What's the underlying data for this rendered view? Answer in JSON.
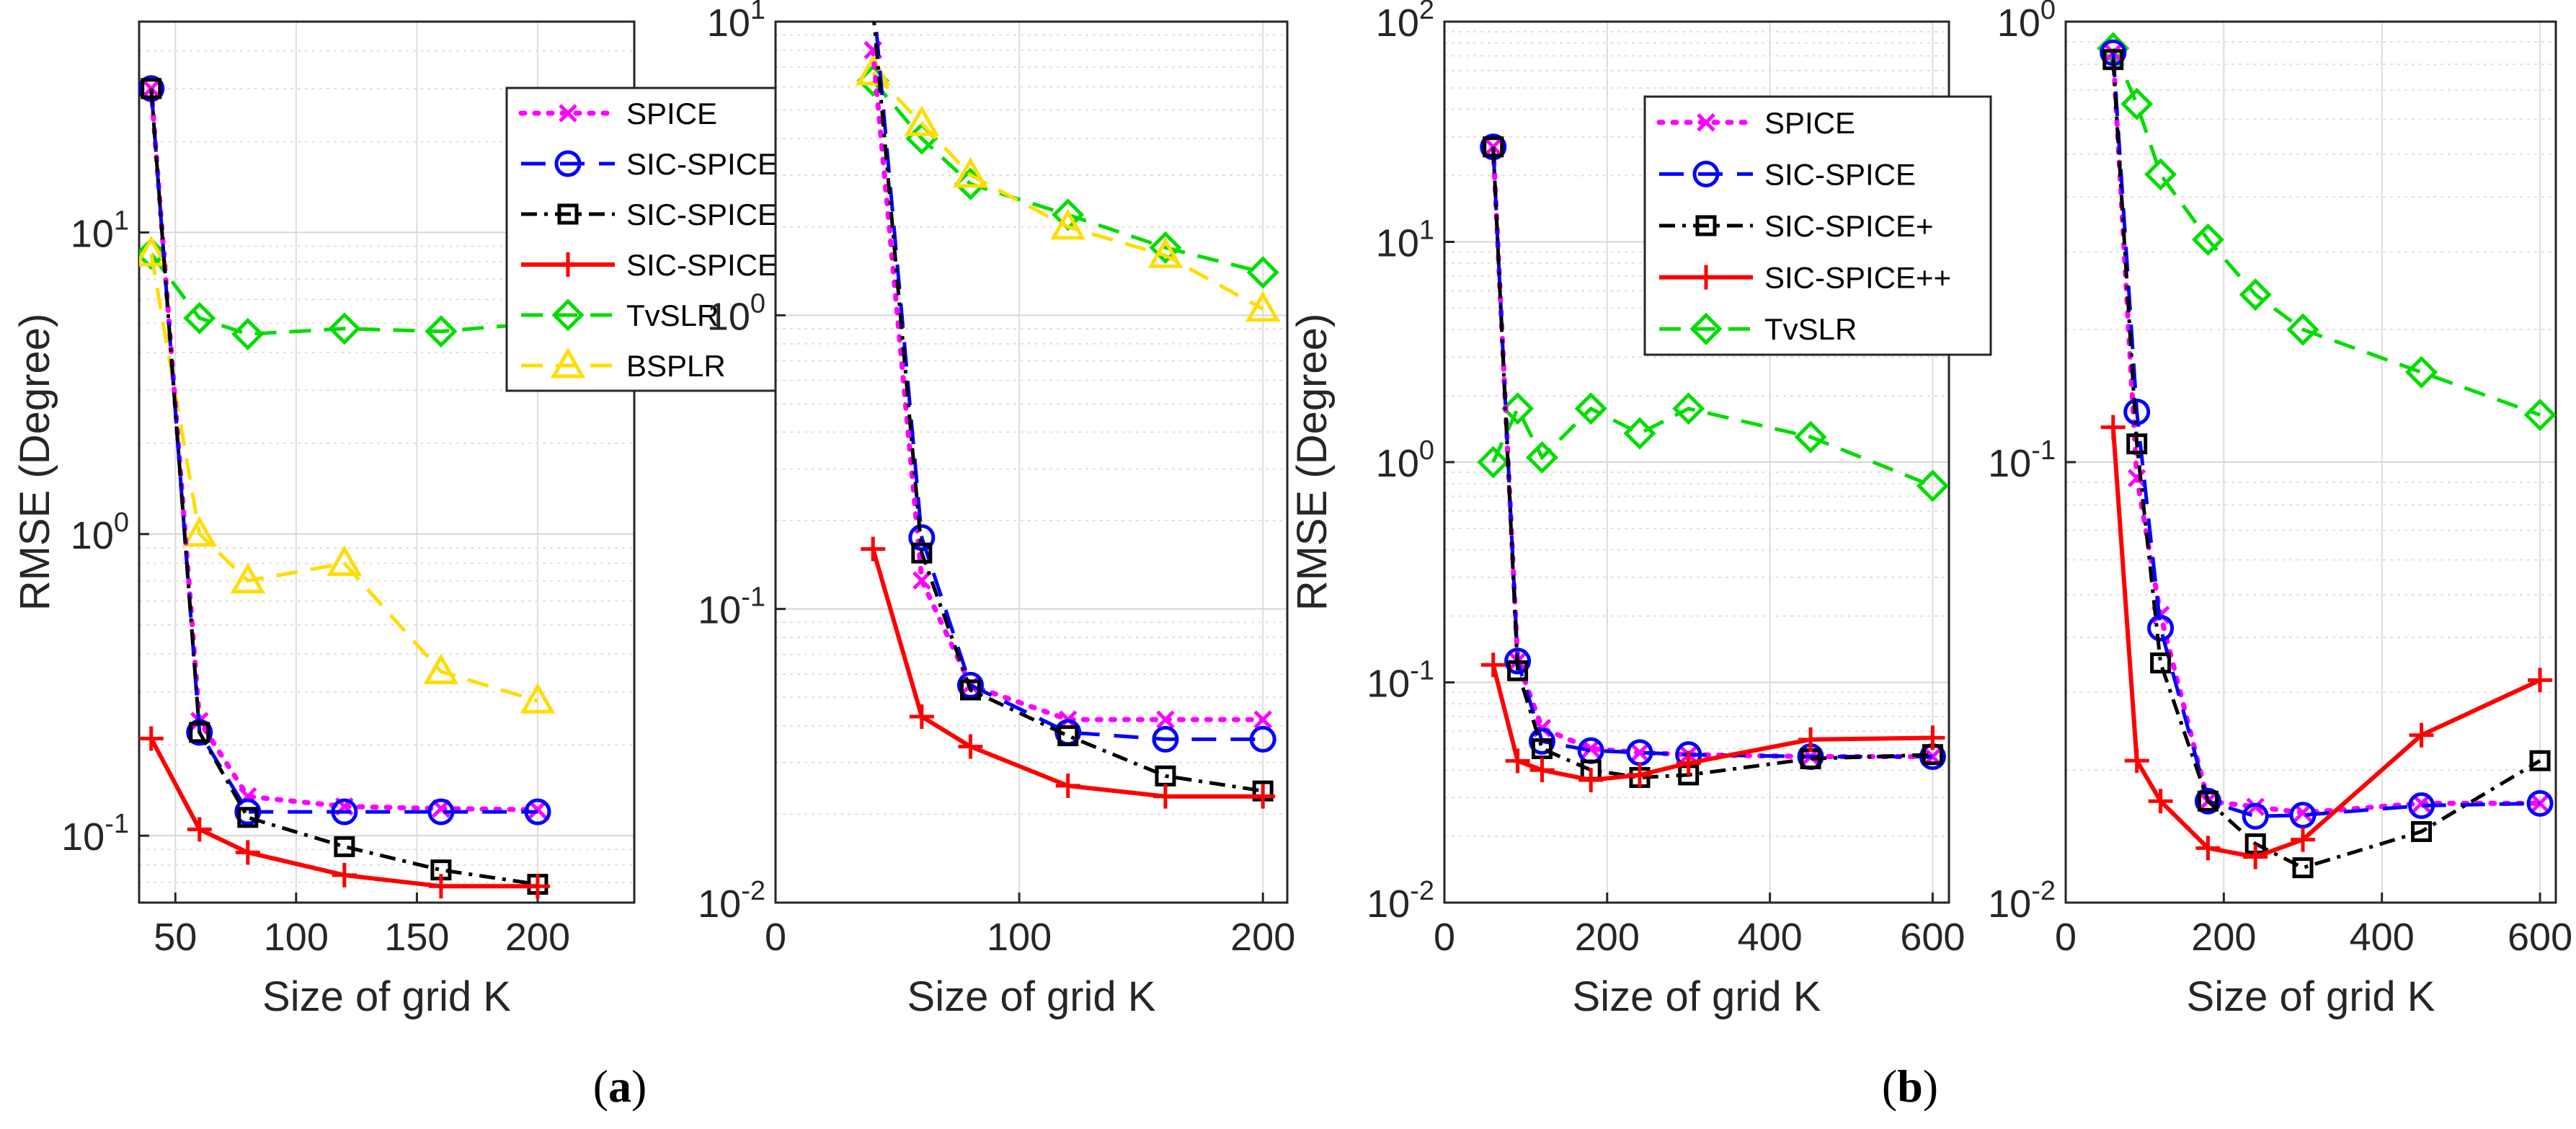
{
  "colors": {
    "SPICE": "#ff00ff",
    "SIC-SPICE": "#0000ff",
    "SIC-SPICE+": "#000000",
    "SIC-SPICE++": "#ff0000",
    "TvSLR": "#00dd00",
    "BSPLR": "#ffdd00"
  },
  "captions": [
    "(a)",
    "(b)"
  ],
  "chart_data": [
    {
      "type": "line",
      "yscale": "log",
      "xlabel": "Size of grid K",
      "ylabel": "RMSE (Degree)",
      "xlim": [
        35,
        240
      ],
      "ylim": [
        0.06,
        50
      ],
      "xticks": [
        "50",
        "100",
        "150",
        "200"
      ],
      "xtick_values": [
        50,
        100,
        150,
        200
      ],
      "yticks": [
        "10^-1",
        "10^0",
        "10^1"
      ],
      "ytick_values": [
        0.1,
        1,
        10
      ],
      "grid": true,
      "legend_position": "top-right",
      "legend": [
        "SPICE",
        "SIC-SPICE",
        "SIC-SPICE+",
        "SIC-SPICE++",
        "TvSLR",
        "BSPLR"
      ],
      "series": [
        {
          "name": "SPICE",
          "x": [
            40,
            60,
            80,
            120,
            160,
            200
          ],
          "y": [
            30,
            0.24,
            0.135,
            0.125,
            0.123,
            0.122
          ]
        },
        {
          "name": "SIC-SPICE",
          "x": [
            40,
            60,
            80,
            120,
            160,
            200
          ],
          "y": [
            30,
            0.22,
            0.12,
            0.12,
            0.12,
            0.12
          ]
        },
        {
          "name": "SIC-SPICE+",
          "x": [
            40,
            60,
            80,
            120,
            160,
            200
          ],
          "y": [
            30,
            0.22,
            0.115,
            0.092,
            0.077,
            0.069
          ]
        },
        {
          "name": "SIC-SPICE++",
          "x": [
            40,
            60,
            80,
            120,
            160,
            200
          ],
          "y": [
            0.21,
            0.105,
            0.088,
            0.074,
            0.068,
            0.068
          ]
        },
        {
          "name": "TvSLR",
          "x": [
            40,
            60,
            80,
            120,
            160,
            200
          ],
          "y": [
            8.5,
            5.2,
            4.6,
            4.8,
            4.7,
            5.0
          ]
        },
        {
          "name": "BSPLR",
          "x": [
            40,
            60,
            80,
            120,
            160,
            200
          ],
          "y": [
            8.5,
            1.0,
            0.7,
            0.8,
            0.35,
            0.28
          ]
        }
      ]
    },
    {
      "type": "line",
      "yscale": "log",
      "xlabel": "Size of grid K",
      "ylabel": "",
      "xlim": [
        0,
        210
      ],
      "ylim": [
        0.01,
        10
      ],
      "xticks": [
        "0",
        "100",
        "200"
      ],
      "xtick_values": [
        0,
        100,
        200
      ],
      "yticks": [
        "10^-2",
        "10^-1",
        "10^0",
        "10^1"
      ],
      "ytick_values": [
        0.01,
        0.1,
        1,
        10
      ],
      "grid": true,
      "series": [
        {
          "name": "SPICE",
          "x": [
            40,
            60,
            80,
            120,
            160,
            200
          ],
          "y": [
            8.0,
            0.125,
            0.055,
            0.042,
            0.042,
            0.042
          ]
        },
        {
          "name": "SIC-SPICE",
          "x": [
            40,
            60,
            80,
            120,
            160,
            200
          ],
          "y": [
            12.5,
            0.175,
            0.055,
            0.038,
            0.036,
            0.036
          ]
        },
        {
          "name": "SIC-SPICE+",
          "x": [
            40,
            60,
            80,
            120,
            160,
            200
          ],
          "y": [
            11.0,
            0.155,
            0.053,
            0.037,
            0.027,
            0.024
          ]
        },
        {
          "name": "SIC-SPICE++",
          "x": [
            40,
            60,
            80,
            120,
            160,
            200
          ],
          "y": [
            0.16,
            0.043,
            0.034,
            0.025,
            0.023,
            0.023
          ]
        },
        {
          "name": "TvSLR",
          "x": [
            40,
            60,
            80,
            120,
            160,
            200
          ],
          "y": [
            6.3,
            4.0,
            2.8,
            2.2,
            1.7,
            1.4
          ]
        },
        {
          "name": "BSPLR",
          "x": [
            40,
            60,
            80,
            120,
            160,
            200
          ],
          "y": [
            6.7,
            4.5,
            3.0,
            2.0,
            1.6,
            1.05
          ]
        }
      ]
    },
    {
      "type": "line",
      "yscale": "log",
      "xlabel": "Size of grid K",
      "ylabel": "RMSE (Degree)",
      "xlim": [
        0,
        620
      ],
      "ylim": [
        0.01,
        100
      ],
      "xticks": [
        "0",
        "200",
        "400",
        "600"
      ],
      "xtick_values": [
        0,
        200,
        400,
        600
      ],
      "yticks": [
        "10^-2",
        "10^-1",
        "10^0",
        "10^1",
        "10^2"
      ],
      "ytick_values": [
        0.01,
        0.1,
        1,
        10,
        100
      ],
      "grid": true,
      "legend_position": "top-right",
      "legend": [
        "SPICE",
        "SIC-SPICE",
        "SIC-SPICE+",
        "SIC-SPICE++",
        "TvSLR"
      ],
      "series": [
        {
          "name": "SPICE",
          "x": [
            60,
            90,
            120,
            180,
            240,
            300,
            450,
            600
          ],
          "y": [
            27,
            0.125,
            0.062,
            0.05,
            0.048,
            0.047,
            0.046,
            0.046
          ]
        },
        {
          "name": "SIC-SPICE",
          "x": [
            60,
            90,
            120,
            180,
            240,
            300,
            450,
            600
          ],
          "y": [
            27,
            0.125,
            0.054,
            0.049,
            0.048,
            0.047,
            0.046,
            0.046
          ]
        },
        {
          "name": "SIC-SPICE+",
          "x": [
            60,
            90,
            120,
            180,
            240,
            300,
            450,
            600
          ],
          "y": [
            27,
            0.113,
            0.05,
            0.04,
            0.037,
            0.038,
            0.045,
            0.047
          ]
        },
        {
          "name": "SIC-SPICE++",
          "x": [
            60,
            90,
            120,
            180,
            240,
            300,
            450,
            600
          ],
          "y": [
            0.12,
            0.044,
            0.04,
            0.036,
            0.038,
            0.043,
            0.055,
            0.056
          ]
        },
        {
          "name": "TvSLR",
          "x": [
            60,
            90,
            120,
            180,
            240,
            300,
            450,
            600
          ],
          "y": [
            1.0,
            1.75,
            1.05,
            1.75,
            1.35,
            1.75,
            1.3,
            0.78
          ]
        }
      ]
    },
    {
      "type": "line",
      "yscale": "log",
      "xlabel": "Size of grid K",
      "ylabel": "",
      "xlim": [
        0,
        620
      ],
      "ylim": [
        0.01,
        1
      ],
      "xticks": [
        "0",
        "200",
        "400",
        "600"
      ],
      "xtick_values": [
        0,
        200,
        400,
        600
      ],
      "yticks": [
        "10^-2",
        "10^-1",
        "10^0"
      ],
      "ytick_values": [
        0.01,
        0.1,
        1
      ],
      "grid": true,
      "series": [
        {
          "name": "SPICE",
          "x": [
            60,
            90,
            120,
            180,
            240,
            300,
            450,
            600
          ],
          "y": [
            0.85,
            0.092,
            0.045,
            0.017,
            0.0165,
            0.016,
            0.0168,
            0.0168
          ]
        },
        {
          "name": "SIC-SPICE",
          "x": [
            60,
            90,
            120,
            180,
            240,
            300,
            450,
            600
          ],
          "y": [
            0.85,
            0.13,
            0.042,
            0.017,
            0.0157,
            0.0158,
            0.0166,
            0.0168
          ]
        },
        {
          "name": "SIC-SPICE+",
          "x": [
            60,
            90,
            120,
            180,
            240,
            300,
            450,
            600
          ],
          "y": [
            0.82,
            0.11,
            0.035,
            0.017,
            0.0136,
            0.012,
            0.0145,
            0.021
          ]
        },
        {
          "name": "SIC-SPICE++",
          "x": [
            60,
            90,
            120,
            180,
            240,
            300,
            450,
            600
          ],
          "y": [
            0.12,
            0.021,
            0.017,
            0.0133,
            0.0127,
            0.0139,
            0.024,
            0.032
          ]
        },
        {
          "name": "TvSLR",
          "x": [
            60,
            90,
            120,
            180,
            240,
            300,
            450,
            600
          ],
          "y": [
            0.87,
            0.65,
            0.45,
            0.32,
            0.24,
            0.2,
            0.16,
            0.128
          ]
        }
      ]
    }
  ]
}
